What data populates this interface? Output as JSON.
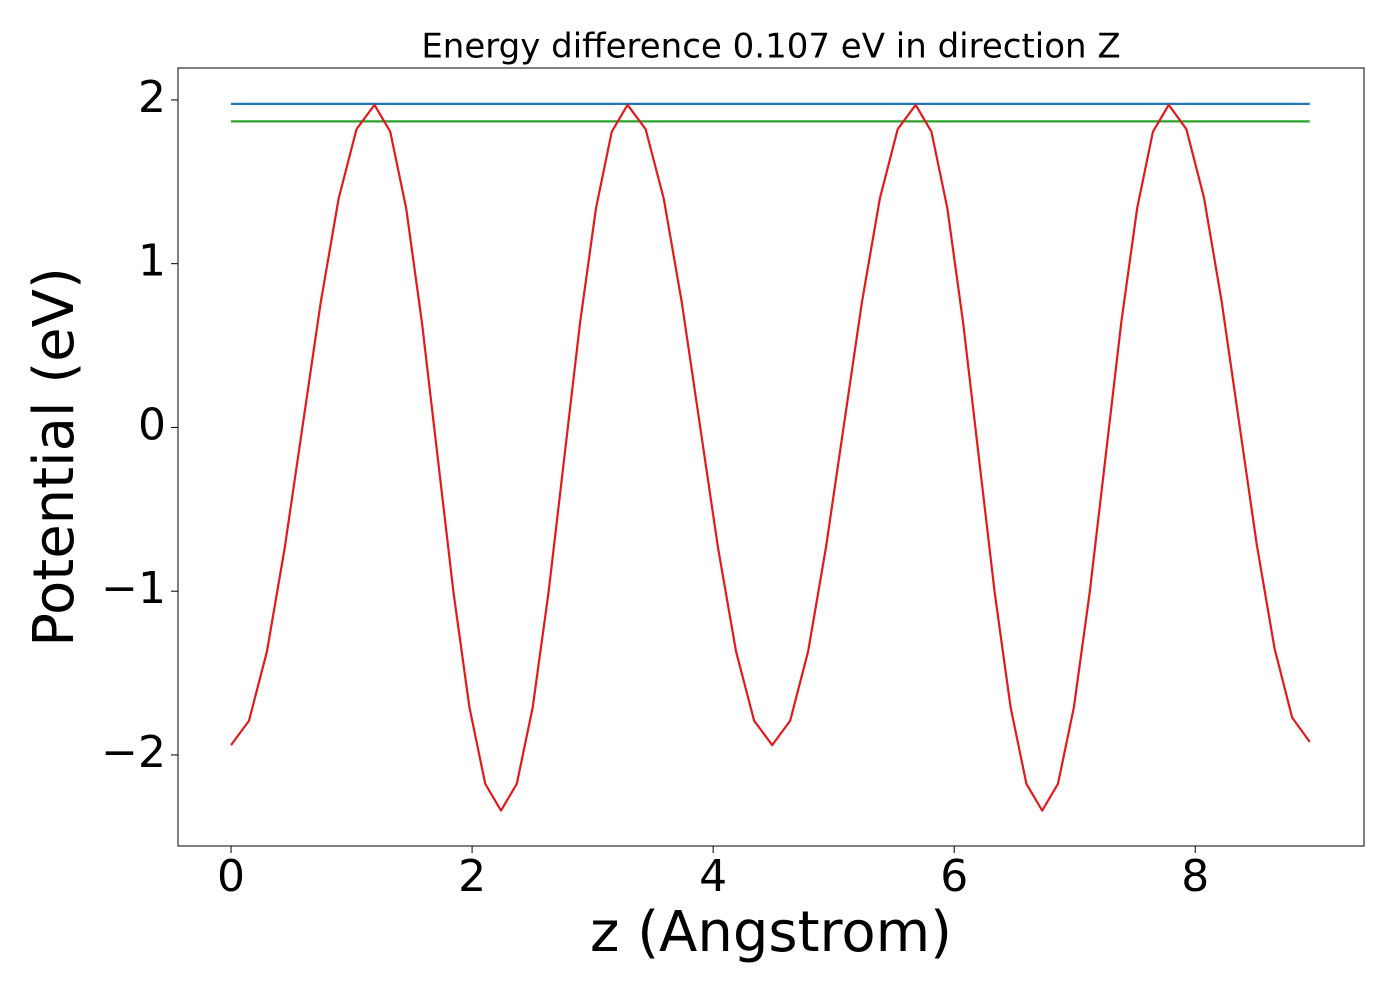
{
  "chart_data": {
    "type": "line",
    "title": "Energy difference 0.107 eV in direction Z",
    "xlabel": "z (Angstrom)",
    "ylabel": "Potential (eV)",
    "xlim": [
      -0.44,
      9.4
    ],
    "ylim": [
      -2.556,
      2.195
    ],
    "xticks": [
      0,
      2,
      4,
      6,
      8
    ],
    "yticks": [
      {
        "value": -2,
        "label": "−2"
      },
      {
        "value": -1,
        "label": "−1"
      },
      0,
      1,
      2
    ],
    "grid": false,
    "series": [
      {
        "color": "#1f77b4",
        "x": [
          0,
          8.95
        ],
        "values": [
          1.976,
          1.976
        ]
      },
      {
        "color": "#2ca02c",
        "x": [
          0,
          8.95
        ],
        "values": [
          1.869,
          1.869
        ]
      },
      {
        "color": "#e3191c",
        "x": [
          0,
          0.149,
          0.298,
          0.446,
          0.595,
          0.744,
          0.893,
          1.041,
          1.19,
          1.321,
          1.453,
          1.584,
          1.715,
          1.846,
          1.978,
          2.109,
          2.24,
          2.371,
          2.503,
          2.634,
          2.765,
          2.896,
          3.028,
          3.159,
          3.29,
          3.44,
          3.59,
          3.74,
          3.89,
          4.04,
          4.19,
          4.34,
          4.49,
          4.639,
          4.788,
          4.936,
          5.085,
          5.234,
          5.383,
          5.531,
          5.68,
          5.811,
          5.943,
          6.074,
          6.205,
          6.336,
          6.468,
          6.599,
          6.73,
          6.861,
          6.993,
          7.124,
          7.255,
          7.386,
          7.518,
          7.649,
          7.78,
          7.926,
          8.073,
          8.219,
          8.365,
          8.511,
          8.658,
          8.804,
          8.95
        ],
        "values": [
          -1.94,
          -1.791,
          -1.368,
          -0.733,
          0.015,
          0.763,
          1.398,
          1.821,
          1.97,
          1.806,
          1.339,
          0.64,
          -0.185,
          -1.009,
          -1.709,
          -2.176,
          -2.34,
          -2.176,
          -1.709,
          -1.009,
          -0.185,
          0.64,
          1.339,
          1.806,
          1.97,
          1.821,
          1.398,
          0.763,
          0.015,
          -0.733,
          -1.368,
          -1.791,
          -1.94,
          -1.791,
          -1.368,
          -0.733,
          0.015,
          0.763,
          1.398,
          1.821,
          1.97,
          1.806,
          1.339,
          0.64,
          -0.185,
          -1.009,
          -1.709,
          -2.176,
          -2.34,
          -2.176,
          -1.709,
          -1.009,
          -0.185,
          0.64,
          1.339,
          1.806,
          1.97,
          1.822,
          1.401,
          0.769,
          0.025,
          -0.719,
          -1.35,
          -1.772,
          -1.92
        ]
      }
    ]
  }
}
